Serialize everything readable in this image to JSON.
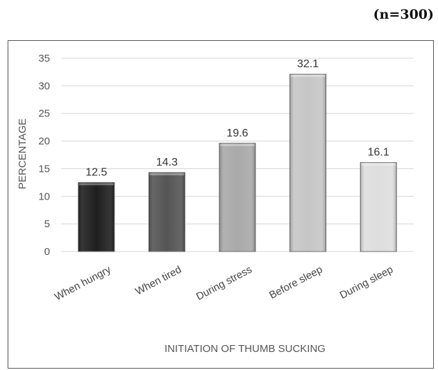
{
  "sample_note": "(n=300)",
  "chart_data": {
    "type": "bar",
    "categories": [
      "When hungry",
      "When tired",
      "During stress",
      "Before sleep",
      "During sleep"
    ],
    "values": [
      12.5,
      14.3,
      19.6,
      32.1,
      16.1
    ],
    "value_labels": [
      "12.5",
      "14.3",
      "19.6",
      "32.1",
      "16.1"
    ],
    "bar_colors": [
      "#1f1f1f",
      "#555555",
      "#a9a9a9",
      "#c6c6c6",
      "#dedede"
    ],
    "title": "",
    "xlabel": "INITIATION OF THUMB SUCKING",
    "ylabel": "PERCENTAGE",
    "ylim": [
      0,
      35
    ],
    "yticks": [
      0,
      5,
      10,
      15,
      20,
      25,
      30,
      35
    ],
    "grid": true,
    "legend": "none"
  }
}
